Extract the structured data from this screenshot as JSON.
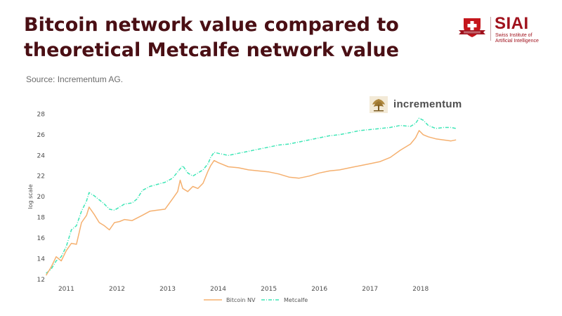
{
  "header": {
    "title": "Bitcoin network value compared to theoretical Metcalfe network value",
    "source": "Source: Incrementum AG."
  },
  "logo": {
    "name": "SIAI",
    "subtitle": "Swiss Institute of Artificial Intelligence",
    "color": "#a0121d"
  },
  "brand": {
    "label": "incrementum",
    "icon": "incrementum-tree-icon"
  },
  "colors": {
    "bitcoin": "#f5b06f",
    "metcalfe": "#3ee6b6"
  },
  "chart_data": {
    "type": "line",
    "title": "",
    "xlabel": "",
    "ylabel": "log scale",
    "ylim": [
      12,
      28.5
    ],
    "xlim": [
      2010.55,
      2018.85
    ],
    "yticks": [
      12,
      14,
      16,
      18,
      20,
      22,
      24,
      26,
      28
    ],
    "xticks": [
      "2011",
      "2012",
      "2013",
      "2014",
      "2015",
      "2016",
      "2017",
      "2018"
    ],
    "legend_position": "bottom",
    "series": [
      {
        "name": "Bitcoin NV",
        "style": "solid",
        "x": [
          2010.6,
          2010.7,
          2010.8,
          2010.9,
          2011.0,
          2011.1,
          2011.2,
          2011.3,
          2011.4,
          2011.45,
          2011.55,
          2011.65,
          2011.75,
          2011.85,
          2011.95,
          2012.05,
          2012.15,
          2012.3,
          2012.5,
          2012.65,
          2012.8,
          2012.95,
          2013.1,
          2013.2,
          2013.25,
          2013.3,
          2013.4,
          2013.5,
          2013.6,
          2013.7,
          2013.8,
          2013.85,
          2013.92,
          2014.0,
          2014.2,
          2014.4,
          2014.6,
          2014.8,
          2015.0,
          2015.2,
          2015.4,
          2015.6,
          2015.8,
          2016.0,
          2016.2,
          2016.4,
          2016.6,
          2016.8,
          2017.0,
          2017.2,
          2017.4,
          2017.6,
          2017.8,
          2017.9,
          2017.97,
          2018.05,
          2018.15,
          2018.3,
          2018.45,
          2018.6,
          2018.7
        ],
        "values": [
          12.4,
          13.2,
          14.2,
          13.8,
          14.8,
          15.5,
          15.4,
          17.5,
          18.2,
          19.0,
          18.3,
          17.5,
          17.2,
          16.8,
          17.5,
          17.6,
          17.8,
          17.7,
          18.2,
          18.6,
          18.7,
          18.8,
          19.8,
          20.5,
          21.6,
          20.8,
          20.5,
          21.0,
          20.8,
          21.3,
          22.5,
          23.0,
          23.5,
          23.3,
          22.9,
          22.8,
          22.6,
          22.5,
          22.4,
          22.2,
          21.9,
          21.8,
          22.0,
          22.3,
          22.5,
          22.6,
          22.8,
          23.0,
          23.2,
          23.4,
          23.8,
          24.5,
          25.1,
          25.7,
          26.4,
          26.0,
          25.8,
          25.6,
          25.5,
          25.4,
          25.5
        ]
      },
      {
        "name": "Metcalfe",
        "style": "dashdot",
        "x": [
          2010.6,
          2010.7,
          2010.8,
          2010.9,
          2011.0,
          2011.1,
          2011.2,
          2011.3,
          2011.4,
          2011.45,
          2011.55,
          2011.65,
          2011.75,
          2011.85,
          2011.95,
          2012.05,
          2012.15,
          2012.3,
          2012.4,
          2012.5,
          2012.65,
          2012.8,
          2012.95,
          2013.1,
          2013.2,
          2013.3,
          2013.4,
          2013.5,
          2013.6,
          2013.7,
          2013.8,
          2013.85,
          2013.92,
          2014.0,
          2014.2,
          2014.4,
          2014.6,
          2014.8,
          2015.0,
          2015.2,
          2015.4,
          2015.6,
          2015.8,
          2016.0,
          2016.2,
          2016.4,
          2016.6,
          2016.8,
          2017.0,
          2017.2,
          2017.4,
          2017.6,
          2017.8,
          2017.9,
          2017.97,
          2018.05,
          2018.15,
          2018.3,
          2018.45,
          2018.6,
          2018.7
        ],
        "values": [
          12.6,
          13.0,
          13.8,
          14.2,
          15.2,
          16.8,
          17.2,
          18.6,
          19.6,
          20.4,
          20.1,
          19.7,
          19.3,
          18.8,
          18.7,
          19.0,
          19.3,
          19.4,
          19.8,
          20.6,
          21.0,
          21.2,
          21.4,
          21.8,
          22.4,
          23.0,
          22.3,
          22.0,
          22.3,
          22.6,
          23.2,
          23.8,
          24.3,
          24.2,
          24.0,
          24.2,
          24.4,
          24.6,
          24.8,
          25.0,
          25.1,
          25.3,
          25.5,
          25.7,
          25.9,
          26.0,
          26.2,
          26.4,
          26.5,
          26.6,
          26.7,
          26.9,
          26.8,
          27.1,
          27.6,
          27.4,
          26.9,
          26.6,
          26.7,
          26.7,
          26.6
        ]
      }
    ]
  }
}
